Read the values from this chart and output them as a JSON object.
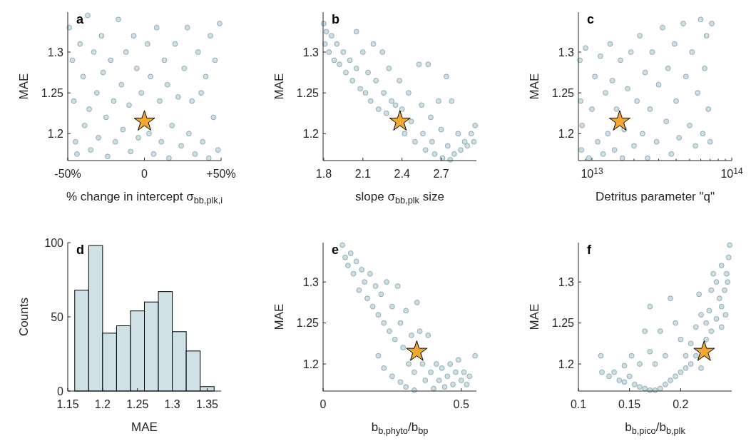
{
  "chart_data": [
    {
      "type": "scatter",
      "title": "a",
      "xlabel": "% change in intercept σ$_{bb,plk,i}$",
      "ylabel": "MAE",
      "xlim": [
        -50,
        50
      ],
      "xticks": [
        {
          "value": -50,
          "label": "-50%"
        },
        0,
        {
          "value": 50,
          "label": "+50%"
        }
      ],
      "ylim": [
        1.167,
        1.349
      ],
      "yticks": [
        1.2,
        1.25,
        1.3
      ],
      "series": [
        {
          "color": "#cddfe4",
          "marker": "circle",
          "x": [
            -49,
            -47,
            -46,
            -45,
            -44,
            -42,
            -40,
            -39,
            -37,
            -36,
            -35,
            -33,
            -31,
            -30,
            -28,
            -27,
            -25,
            -24,
            -22,
            -20,
            -19,
            -17,
            -15,
            -14,
            -12,
            -10,
            -9,
            -7,
            -5,
            -4,
            -2,
            2,
            3,
            4,
            6,
            8,
            10,
            11,
            13,
            15,
            16,
            18,
            20,
            22,
            24,
            26,
            28,
            29,
            31,
            33,
            35,
            37,
            38,
            40,
            42,
            43,
            45,
            46,
            48,
            49
          ],
          "values": [
            1.33,
            1.29,
            1.24,
            1.19,
            1.175,
            1.31,
            1.27,
            1.21,
            1.345,
            1.23,
            1.18,
            1.3,
            1.25,
            1.195,
            1.32,
            1.275,
            1.22,
            1.172,
            1.29,
            1.24,
            1.19,
            1.34,
            1.26,
            1.205,
            1.3,
            1.235,
            1.178,
            1.32,
            1.28,
            1.195,
            1.25,
            1.31,
            1.2,
            1.27,
            1.175,
            1.33,
            1.24,
            1.19,
            1.29,
            1.26,
            1.17,
            1.21,
            1.31,
            1.245,
            1.185,
            1.28,
            1.33,
            1.2,
            1.24,
            1.175,
            1.3,
            1.25,
            1.19,
            1.27,
            1.17,
            1.32,
            1.22,
            1.29,
            1.18,
            1.335
          ]
        },
        {
          "color": "#f0a830",
          "marker": "star",
          "x": [
            0
          ],
          "values": [
            1.215
          ]
        }
      ]
    },
    {
      "type": "scatter",
      "title": "b",
      "xlabel": "slope σ$_{bb,plk}$ size",
      "ylabel": "MAE",
      "xlim": [
        1.795,
        2.97
      ],
      "xticks": [
        1.8,
        2.1,
        2.4,
        2.7
      ],
      "ylim": [
        1.167,
        1.349
      ],
      "yticks": [
        1.2,
        1.25,
        1.3
      ],
      "series": [
        {
          "color": "#cddfe4",
          "marker": "circle",
          "x": [
            1.8,
            1.81,
            1.82,
            1.84,
            1.86,
            1.88,
            1.9,
            1.92,
            1.95,
            1.97,
            2.0,
            2.02,
            2.05,
            2.05,
            2.08,
            2.1,
            2.12,
            2.14,
            2.16,
            2.18,
            2.2,
            2.22,
            2.25,
            2.26,
            2.28,
            2.3,
            2.32,
            2.35,
            2.38,
            2.4,
            2.42,
            2.45,
            2.47,
            2.5,
            2.53,
            2.55,
            2.56,
            2.58,
            2.6,
            2.62,
            2.63,
            2.65,
            2.68,
            2.7,
            2.71,
            2.74,
            2.75,
            2.77,
            2.78,
            2.8,
            2.83,
            2.85,
            2.88,
            2.9,
            2.93,
            2.95,
            2.96
          ],
          "values": [
            1.335,
            1.31,
            1.325,
            1.3,
            1.32,
            1.29,
            1.31,
            1.285,
            1.3,
            1.275,
            1.29,
            1.265,
            1.325,
            1.28,
            1.255,
            1.3,
            1.25,
            1.275,
            1.24,
            1.31,
            1.265,
            1.23,
            1.3,
            1.25,
            1.225,
            1.28,
            1.24,
            1.235,
            1.265,
            1.23,
            1.2,
            1.25,
            1.215,
            1.19,
            1.285,
            1.235,
            1.2,
            1.18,
            1.285,
            1.22,
            1.19,
            1.175,
            1.24,
            1.205,
            1.17,
            1.27,
            1.185,
            1.168,
            1.24,
            1.175,
            1.2,
            1.18,
            1.19,
            1.185,
            1.2,
            1.19,
            1.21
          ]
        },
        {
          "color": "#f0a830",
          "marker": "star",
          "x": [
            2.384
          ],
          "values": [
            1.215
          ]
        }
      ]
    },
    {
      "type": "scatter",
      "title": "c",
      "xlabel": "Detritus parameter \"q\"",
      "ylabel": "MAE",
      "log": "x",
      "xlim": [
        8000000000000.0,
        100000000000000.0
      ],
      "xticks": [
        {
          "value": 9000000000000.0,
          "label": null
        },
        {
          "value": 10000000000000.0,
          "label": "10$^{13}$"
        },
        {
          "value": 20000000000000.0,
          "label": null
        },
        {
          "value": 30000000000000.0,
          "label": null
        },
        {
          "value": 40000000000000.0,
          "label": null
        },
        {
          "value": 50000000000000.0,
          "label": null
        },
        {
          "value": 60000000000000.0,
          "label": null
        },
        {
          "value": 70000000000000.0,
          "label": null
        },
        {
          "value": 80000000000000.0,
          "label": null
        },
        {
          "value": 90000000000000.0,
          "label": null
        },
        {
          "value": 100000000000000.0,
          "label": "10$^{14}$"
        }
      ],
      "ylim": [
        1.167,
        1.349
      ],
      "yticks": [
        1.2,
        1.25,
        1.3
      ],
      "series": [
        {
          "color": "#cddfe4",
          "marker": "circle",
          "x": [
            8200000000000.0,
            8300000000000.0,
            8400000000000.0,
            8500000000000.0,
            9000000000000.0,
            9500000000000.0,
            10000000000000.0,
            10500000000000.0,
            11000000000000.0,
            11500000000000.0,
            12000000000000.0,
            12500000000000.0,
            13000000000000.0,
            13500000000000.0,
            14000000000000.0,
            14500000000000.0,
            15000000000000.0,
            16000000000000.0,
            16500000000000.0,
            17000000000000.0,
            18000000000000.0,
            19000000000000.0,
            20000000000000.0,
            21000000000000.0,
            22000000000000.0,
            23000000000000.0,
            24000000000000.0,
            25000000000000.0,
            26000000000000.0,
            27000000000000.0,
            29000000000000.0,
            30000000000000.0,
            32000000000000.0,
            34000000000000.0,
            35000000000000.0,
            37000000000000.0,
            39000000000000.0,
            40000000000000.0,
            42000000000000.0,
            45000000000000.0,
            47000000000000.0,
            50000000000000.0,
            52000000000000.0,
            55000000000000.0,
            57000000000000.0,
            60000000000000.0,
            62000000000000.0,
            64000000000000.0,
            66000000000000.0,
            68000000000000.0,
            70000000000000.0,
            72000000000000.0
          ],
          "values": [
            1.29,
            1.24,
            1.18,
            1.21,
            1.305,
            1.17,
            1.23,
            1.27,
            1.19,
            1.295,
            1.175,
            1.25,
            1.2,
            1.31,
            1.265,
            1.18,
            1.23,
            1.29,
            1.17,
            1.205,
            1.255,
            1.3,
            1.185,
            1.24,
            1.32,
            1.2,
            1.275,
            1.17,
            1.23,
            1.3,
            1.19,
            1.26,
            1.33,
            1.215,
            1.28,
            1.175,
            1.31,
            1.24,
            1.195,
            1.335,
            1.27,
            1.21,
            1.3,
            1.185,
            1.25,
            1.34,
            1.2,
            1.28,
            1.32,
            1.23,
            1.19,
            1.335
          ]
        },
        {
          "color": "#f0a830",
          "marker": "star",
          "x": [
            15800000000000.0
          ],
          "values": [
            1.215
          ]
        }
      ]
    },
    {
      "type": "histogram",
      "title": "d",
      "xlabel": "MAE",
      "ylabel": "Counts",
      "color": "#cfe0e6",
      "bins": [
        1.16,
        1.18,
        1.2,
        1.22,
        1.24,
        1.26,
        1.28,
        1.3,
        1.32,
        1.34,
        1.36
      ],
      "values": [
        68,
        98,
        39,
        44,
        54,
        60,
        67,
        40,
        27,
        3
      ],
      "xlim": [
        1.15,
        1.37
      ],
      "xticks": [
        1.15,
        1.2,
        1.25,
        1.3,
        1.35
      ],
      "ylim": [
        0,
        100
      ],
      "yticks": [
        0,
        50,
        100
      ]
    },
    {
      "type": "scatter",
      "title": "e",
      "xlabel": "b$_{b,phyto}$/b$_{bp}$",
      "ylabel": "MAE",
      "xlim": [
        0,
        0.555
      ],
      "xticks": [
        0,
        0.5
      ],
      "ylim": [
        1.167,
        1.348
      ],
      "yticks": [
        1.2,
        1.25,
        1.3
      ],
      "series": [
        {
          "color": "#cddfe4",
          "marker": "circle",
          "x": [
            0.07,
            0.08,
            0.09,
            0.1,
            0.11,
            0.12,
            0.13,
            0.14,
            0.15,
            0.16,
            0.17,
            0.18,
            0.19,
            0.2,
            0.21,
            0.22,
            0.23,
            0.24,
            0.25,
            0.26,
            0.27,
            0.28,
            0.29,
            0.3,
            0.31,
            0.32,
            0.33,
            0.34,
            0.35,
            0.36,
            0.37,
            0.38,
            0.39,
            0.4,
            0.41,
            0.42,
            0.43,
            0.44,
            0.45,
            0.46,
            0.47,
            0.48,
            0.49,
            0.5,
            0.51,
            0.52,
            0.53,
            0.55,
            0.2,
            0.22,
            0.25,
            0.28,
            0.3,
            0.33
          ],
          "values": [
            1.345,
            1.33,
            1.32,
            1.335,
            1.31,
            1.325,
            1.29,
            1.315,
            1.3,
            1.28,
            1.31,
            1.27,
            1.295,
            1.26,
            1.285,
            1.25,
            1.3,
            1.24,
            1.27,
            1.23,
            1.295,
            1.25,
            1.22,
            1.265,
            1.2,
            1.235,
            1.19,
            1.275,
            1.24,
            1.2,
            1.18,
            1.235,
            1.19,
            1.17,
            1.2,
            1.18,
            1.195,
            1.172,
            1.185,
            1.2,
            1.175,
            1.19,
            1.205,
            1.18,
            1.19,
            1.175,
            1.185,
            1.21,
            1.21,
            1.195,
            1.185,
            1.178,
            1.172,
            1.168
          ]
        },
        {
          "color": "#f0a830",
          "marker": "star",
          "x": [
            0.339
          ],
          "values": [
            1.215
          ]
        }
      ]
    },
    {
      "type": "scatter",
      "title": "f",
      "xlabel": "b$_{b,pico}$/b$_{b,plk}$",
      "ylabel": "MAE",
      "xlim": [
        0.1,
        0.25
      ],
      "xticks": [
        0.1,
        0.15,
        0.2
      ],
      "ylim": [
        1.167,
        1.348
      ],
      "yticks": [
        1.2,
        1.25,
        1.3
      ],
      "series": [
        {
          "color": "#cddfe4",
          "marker": "circle",
          "x": [
            0.122,
            0.123,
            0.13,
            0.135,
            0.14,
            0.145,
            0.15,
            0.155,
            0.16,
            0.165,
            0.17,
            0.175,
            0.18,
            0.185,
            0.19,
            0.195,
            0.2,
            0.205,
            0.21,
            0.215,
            0.22,
            0.225,
            0.23,
            0.235,
            0.24,
            0.243,
            0.245,
            0.247,
            0.248,
            0.246,
            0.244,
            0.24,
            0.238,
            0.235,
            0.23,
            0.228,
            0.225,
            0.22,
            0.215,
            0.21,
            0.205,
            0.2,
            0.195,
            0.19,
            0.18,
            0.17,
            0.165,
            0.17,
            0.16,
            0.152,
            0.145,
            0.185,
            0.175,
            0.218,
            0.232,
            0.24
          ],
          "values": [
            1.21,
            1.19,
            1.185,
            1.19,
            1.18,
            1.178,
            1.185,
            1.175,
            1.172,
            1.17,
            1.168,
            1.168,
            1.17,
            1.175,
            1.18,
            1.185,
            1.19,
            1.195,
            1.2,
            1.21,
            1.195,
            1.23,
            1.24,
            1.255,
            1.27,
            1.29,
            1.31,
            1.33,
            1.345,
            1.3,
            1.26,
            1.245,
            1.28,
            1.3,
            1.29,
            1.265,
            1.25,
            1.26,
            1.245,
            1.225,
            1.21,
            1.23,
            1.25,
            1.28,
            1.24,
            1.27,
            1.24,
            1.215,
            1.2,
            1.21,
            1.198,
            1.21,
            1.2,
            1.285,
            1.31,
            1.32
          ]
        },
        {
          "color": "#f0a830",
          "marker": "star",
          "x": [
            0.223
          ],
          "values": [
            1.215
          ]
        }
      ]
    }
  ]
}
